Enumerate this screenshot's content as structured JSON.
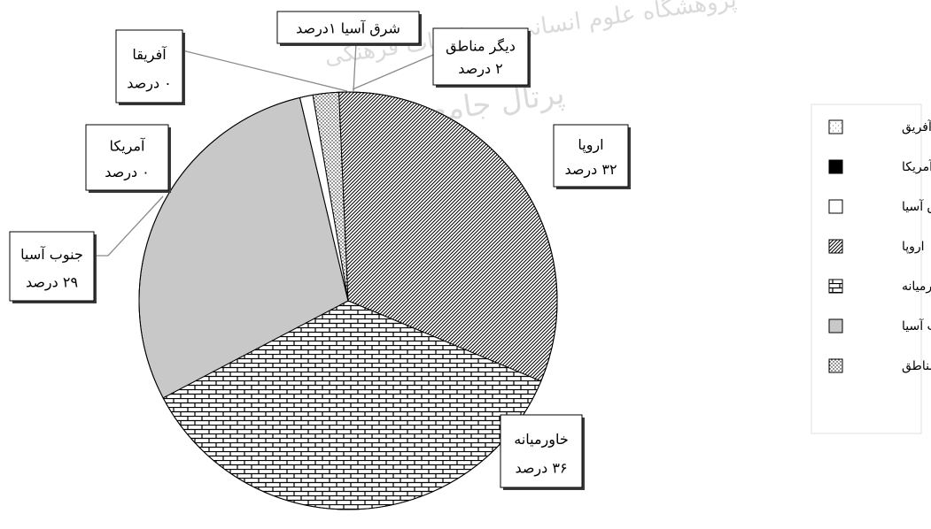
{
  "chart_data": {
    "type": "pie",
    "title": "",
    "unit": "درصد",
    "slices": [
      {
        "key": "other",
        "name": "دیگر مناطق",
        "value": 2,
        "callout_name": "دیگر مناطق",
        "callout_value": "۲ درصد",
        "legend": "دیگر مناطق",
        "pattern": "dots",
        "color": "#ffffff"
      },
      {
        "key": "europe",
        "name": "اروپا",
        "value": 32,
        "callout_name": "اروپا",
        "callout_value": "۳۲ درصد",
        "legend": "اروپا",
        "pattern": "diag",
        "color": "#ffffff"
      },
      {
        "key": "middle_east",
        "name": "خاورمیانه",
        "value": 36,
        "callout_name": "خاورمیانه",
        "callout_value": "۳۶ درصد",
        "legend": "خاورمیانه",
        "pattern": "brick",
        "color": "#ffffff"
      },
      {
        "key": "south_asia",
        "name": "جنوب آسیا",
        "value": 29,
        "callout_name": "جنوب آسیا",
        "callout_value": "۲۹ درصد",
        "legend": "جنوب آسیا",
        "pattern": "solid",
        "color": "#c8c8c8"
      },
      {
        "key": "america",
        "name": "آمریکا",
        "value": 0,
        "callout_name": "آمریکا",
        "callout_value": "۰ درصد",
        "legend": "آمریکا",
        "pattern": "solid",
        "color": "#000000"
      },
      {
        "key": "africa",
        "name": "آفریقا",
        "value": 0,
        "callout_name": "آفریقا",
        "callout_value": "۰ درصد",
        "legend": "آفریق",
        "pattern": "dash",
        "color": "#ffffff"
      },
      {
        "key": "east_asia",
        "name": "شرق آسیا",
        "value": 1,
        "callout_name": "شرق آسیا ۱درصد",
        "callout_value": "",
        "legend": "شرق آسیا",
        "pattern": "solid",
        "color": "#ffffff"
      }
    ],
    "legend_order": [
      "africa",
      "america",
      "east_asia",
      "europe",
      "middle_east",
      "south_asia",
      "other"
    ],
    "legend_position": "right"
  },
  "watermark": {
    "line1": "پژوهشگاه علوم انسانی و مطالعات فرهنگی",
    "line2": "پرتال جامع علوم انسانی"
  }
}
